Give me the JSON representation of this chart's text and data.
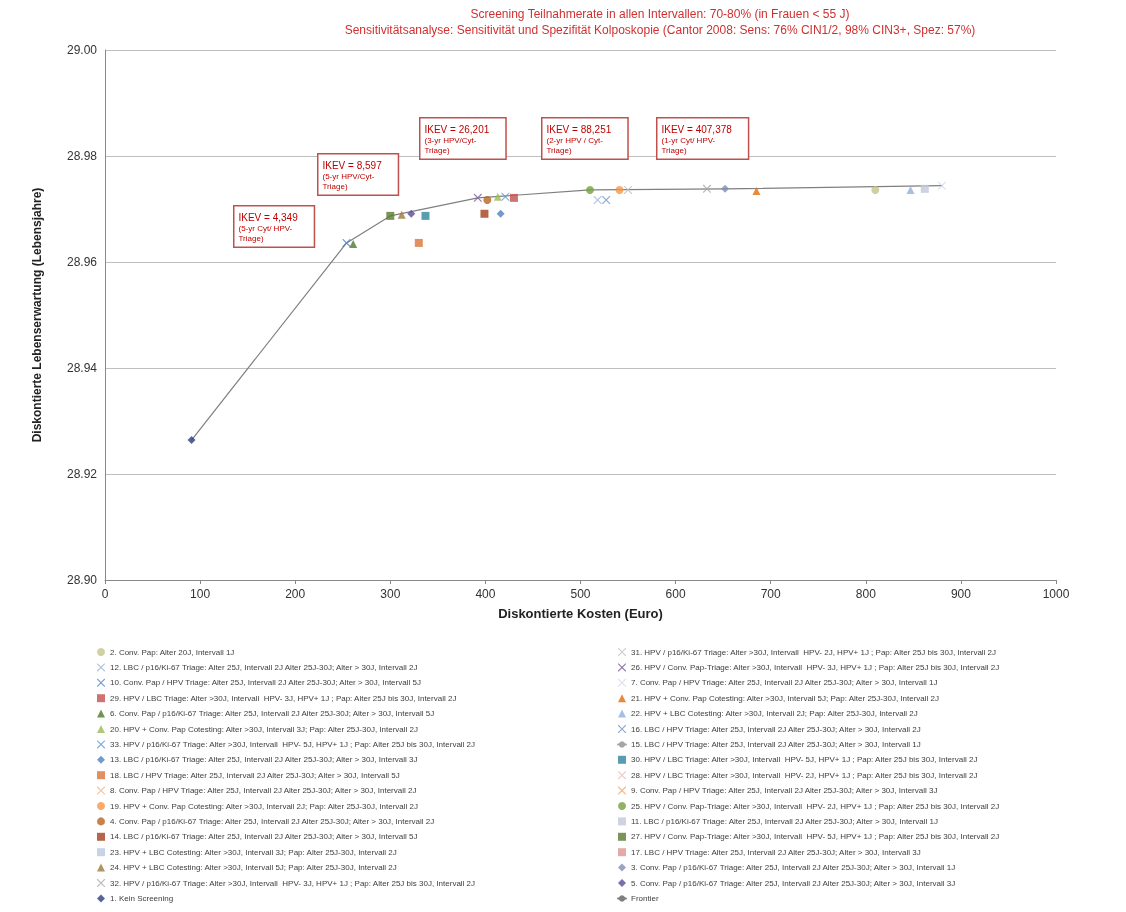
{
  "chart_data": {
    "type": "scatter",
    "title": "Screening Teilnahmerate in allen Intervallen: 70-80% (in Frauen < 55 J)",
    "subtitle": "Sensitivitätsanalyse: Sensitivität und Spezifität Kolposkopie (Cantor 2008: Sens: 76% CIN1/2, 98% CIN3+, Spez: 57%)",
    "xlabel": "Diskontierte Kosten (Euro)",
    "ylabel": "Diskontierte Lebenserwartung (Lebensjahre)",
    "xlim": [
      0,
      1000
    ],
    "xticks": [
      0,
      100,
      200,
      300,
      400,
      500,
      600,
      700,
      800,
      900,
      1000
    ],
    "ylim": [
      28.9,
      29.0
    ],
    "yticks": [
      {
        "value": 28.9,
        "label": "28.90"
      },
      {
        "value": 28.92,
        "label": "28.92"
      },
      {
        "value": 28.94,
        "label": "28.94"
      },
      {
        "value": 28.96,
        "label": "28.96"
      },
      {
        "value": 28.98,
        "label": "28.98"
      },
      {
        "value": 29.0,
        "label": "29.00"
      }
    ],
    "grid": "y",
    "legend": "bottom",
    "annotations": [
      "IKEV = 4,349\n(5-yr Cyt/ HPV-\nTriage)",
      "IKEV = 8,597\n(5-yr HPV/Cyt-\nTriage)",
      "IKEV = 26,201\n(3-yr HPV/Cyt-\nTriage)",
      "IKEV = 88,251\n(2-yr HPV / Cyt-\nTriage)",
      "IKEV = 407,378\n(1-yr Cyt/ HPV-\nTriage)"
    ],
    "series": [
      {
        "name": "2. Conv. Pap: Alter 20J, Intervall 1J",
        "color": "#c4c48c",
        "marker": "circle",
        "x": [
          810
        ],
        "values": [
          28.9736
        ]
      },
      {
        "name": "12. LBC / p16/Ki-67 Triage: Alter 25J, Intervall 2J Alter 25J-30J; Alter > 30J, Intervall 2J",
        "color": "#9db3d6",
        "marker": "cross",
        "x": [
          518
        ],
        "values": [
          28.9717
        ]
      },
      {
        "name": "10. Conv. Pap / HPV Triage: Alter 25J, Intervall 2J Alter 25J-30J; Alter > 30J, Intervall 5J",
        "color": "#4a7fc0",
        "marker": "cross",
        "x": [
          254
        ],
        "values": [
          28.9636
        ]
      },
      {
        "name": "29. HPV / LBC Triage: Alter >30J, Intervall  HPV- 3J, HPV+ 1J ; Pap: Alter 25J bis 30J, Intervall 2J",
        "color": "#c0504d",
        "marker": "square",
        "x": [
          430
        ],
        "values": [
          28.9721
        ]
      },
      {
        "name": "6. Conv. Pap / p16/Ki-67 Triage: Alter 25J, Intervall 2J Alter 25J-30J; Alter > 30J, Intervall 5J",
        "color": "#4f7a28",
        "marker": "triangle",
        "x": [
          261
        ],
        "values": [
          28.9634
        ]
      },
      {
        "name": "20. HPV + Conv. Pap Cotesting: Alter >30J, Intervall 3J; Pap: Alter 25J-30J, Intervall 2J",
        "color": "#9bbb59",
        "marker": "triangle",
        "x": [
          413
        ],
        "values": [
          28.9723
        ]
      },
      {
        "name": "33. HPV / p16/Ki-67 Triage: Alter >30J, Intervall  HPV- 5J, HPV+ 1J ; Pap: Alter 25J bis 30J, Intervall 2J",
        "color": "#5b9bd5",
        "marker": "cross",
        "x": [
          421
        ],
        "values": [
          28.9723
        ]
      },
      {
        "name": "13. LBC / p16/Ki-67 Triage: Alter 25J, Intervall 2J Alter 25J-30J; Alter > 30J, Intervall 3J",
        "color": "#4f81bd",
        "marker": "diamond",
        "x": [
          416
        ],
        "values": [
          28.9691
        ]
      },
      {
        "name": "18. LBC / HPV Triage: Alter 25J, Intervall 2J Alter 25J-30J; Alter > 30J, Intervall 5J",
        "color": "#d9743a",
        "marker": "square",
        "x": [
          330
        ],
        "values": [
          28.9636
        ]
      },
      {
        "name": "8. Conv. Pap / HPV Triage: Alter 25J, Intervall 2J Alter 25J-30J; Alter > 30J, Intervall 2J",
        "color": "#f2b58a",
        "marker": "cross"
      },
      {
        "name": "19. HPV + Conv. Pap Cotesting: Alter >30J, Intervall 2J; Pap: Alter 25J-30J, Intervall 2J",
        "color": "#f79646",
        "marker": "circle",
        "x": [
          541
        ],
        "values": [
          28.9736
        ]
      },
      {
        "name": "4. Conv. Pap / p16/Ki-67 Triage: Alter 25J, Intervall 2J Alter 25J-30J; Alter > 30J, Intervall 2J",
        "color": "#b5651d",
        "marker": "circle",
        "x": [
          402
        ],
        "values": [
          28.9717
        ]
      },
      {
        "name": "14. LBC / p16/Ki-67 Triage: Alter 25J, Intervall 2J Alter 25J-30J; Alter > 30J, Intervall 5J",
        "color": "#a0401a",
        "marker": "square",
        "x": [
          399
        ],
        "values": [
          28.9691
        ]
      },
      {
        "name": "23. HPV + LBC Cotesting: Alter >30J, Intervall 3J; Pap: Alter 25J-30J, Intervall 2J",
        "color": "#b8c9e0",
        "marker": "square"
      },
      {
        "name": "24. HPV + LBC Cotesting: Alter >30J, Intervall 5J; Pap: Alter 25J-30J, Intervall 2J",
        "color": "#9a7a3a",
        "marker": "triangle",
        "x": [
          312
        ],
        "values": [
          28.9689
        ]
      },
      {
        "name": "32. HPV / p16/Ki-67 Triage: Alter >30J, Intervall  HPV- 3J, HPV+ 1J ; Pap: Alter 25J bis 30J, Intervall 2J",
        "color": "#a5a5a5",
        "marker": "cross",
        "x": [
          633
        ],
        "values": [
          28.9738
        ]
      },
      {
        "name": "1. Kein Screening",
        "color": "#2f3f7f",
        "marker": "diamond",
        "x": [
          91
        ],
        "values": [
          28.9264
        ]
      },
      {
        "name": "31. HPV / p16/Ki-67 Triage: Alter >30J, Intervall  HPV- 2J, HPV+ 1J ; Pap: Alter 25J bis 30J, Intervall 2J",
        "color": "#bfbfbf",
        "marker": "cross",
        "x": [
          550
        ],
        "values": [
          28.9736
        ]
      },
      {
        "name": "26. HPV / Conv. Pap-Triage: Alter >30J, Intervall  HPV- 3J, HPV+ 1J ; Pap: Alter 25J bis 30J, Intervall 2J",
        "color": "#7a5a9a",
        "marker": "cross",
        "x": [
          392
        ],
        "values": [
          28.9721
        ]
      },
      {
        "name": "7. Conv. Pap / HPV Triage: Alter 25J, Intervall 2J Alter 25J-30J; Alter > 30J, Intervall 1J",
        "color": "#d0d8e8",
        "marker": "cross",
        "x": [
          880
        ],
        "values": [
          28.9744
        ]
      },
      {
        "name": "21. HPV + Conv. Pap Cotesting: Alter >30J, Intervall 5J; Pap: Alter 25J-30J, Intervall 2J",
        "color": "#e46c0a",
        "marker": "triangle",
        "x": [
          685
        ],
        "values": [
          28.9734
        ]
      },
      {
        "name": "22. HPV + LBC Cotesting: Alter >30J, Intervall 2J; Pap: Alter 25J-30J, Intervall 2J",
        "color": "#8fb0d8",
        "marker": "triangle",
        "x": [
          847
        ],
        "values": [
          28.9736
        ]
      },
      {
        "name": "16. LBC / HPV Triage: Alter 25J, Intervall 2J Alter 25J-30J; Alter > 30J, Intervall 2J",
        "color": "#6f8fc8",
        "marker": "cross",
        "x": [
          527
        ],
        "values": [
          28.9717
        ]
      },
      {
        "name": "15. LBC / HPV Triage: Alter 25J, Intervall 2J Alter 25J-30J; Alter > 30J, Intervall 1J",
        "type": "line",
        "color": "#a6a6a6",
        "marker": "none"
      },
      {
        "name": "30. HPV / LBC Triage: Alter >30J, Intervall  HPV- 5J, HPV+ 1J ; Pap: Alter 25J bis 30J, Intervall 2J",
        "color": "#31859c",
        "marker": "square",
        "x": [
          337
        ],
        "values": [
          28.9687
        ]
      },
      {
        "name": "28. HPV / LBC Triage: Alter >30J, Intervall  HPV- 2J, HPV+ 1J ; Pap: Alter 25J bis 30J, Intervall 2J",
        "color": "#e6b9b8",
        "marker": "cross"
      },
      {
        "name": "9. Conv. Pap / HPV Triage: Alter 25J, Intervall 2J Alter 25J-30J; Alter > 30J, Intervall 3J",
        "color": "#f4a460",
        "marker": "cross"
      },
      {
        "name": "25. HPV / Conv. Pap-Triage: Alter >30J, Intervall  HPV- 2J, HPV+ 1J ; Pap: Alter 25J bis 30J, Intervall 2J",
        "color": "#77a040",
        "marker": "circle",
        "x": [
          510
        ],
        "values": [
          28.9736
        ]
      },
      {
        "name": "11. LBC / p16/Ki-67 Triage: Alter 25J, Intervall 2J Alter 25J-30J; Alter > 30J, Intervall 1J",
        "color": "#c0c8d8",
        "marker": "square",
        "x": [
          862
        ],
        "values": [
          28.9738
        ]
      },
      {
        "name": "27. HPV / Conv. Pap-Triage: Alter >30J, Intervall  HPV- 5J, HPV+ 1J ; Pap: Alter 25J bis 30J, Intervall 2J",
        "color": "#5a7a30",
        "marker": "square",
        "x": [
          300
        ],
        "values": [
          28.9687
        ]
      },
      {
        "name": "17. LBC / HPV Triage: Alter 25J, Intervall 2J Alter 25J-30J; Alter > 30J, Intervall 3J",
        "color": "#d99694",
        "marker": "square"
      },
      {
        "name": "3. Conv. Pap / p16/Ki-67 Triage: Alter 25J, Intervall 2J Alter 25J-30J; Alter > 30J, Intervall 1J",
        "color": "#7f8fb0",
        "marker": "diamond",
        "x": [
          652
        ],
        "values": [
          28.9738
        ]
      },
      {
        "name": "5. Conv. Pap / p16/Ki-67 Triage: Alter 25J, Intervall 2J Alter 25J-30J; Alter > 30J, Intervall 3J",
        "color": "#5b4a9a",
        "marker": "diamond",
        "x": [
          322
        ],
        "values": [
          28.9691
        ]
      },
      {
        "name": "Frontier",
        "type": "line",
        "color": "#7f7f7f",
        "marker": "none",
        "line_style": "solid",
        "x": [
          91,
          254,
          300,
          392,
          510,
          652,
          880
        ],
        "values": [
          28.9264,
          28.9636,
          28.9687,
          28.9721,
          28.9736,
          28.9738,
          28.9744
        ]
      }
    ]
  }
}
